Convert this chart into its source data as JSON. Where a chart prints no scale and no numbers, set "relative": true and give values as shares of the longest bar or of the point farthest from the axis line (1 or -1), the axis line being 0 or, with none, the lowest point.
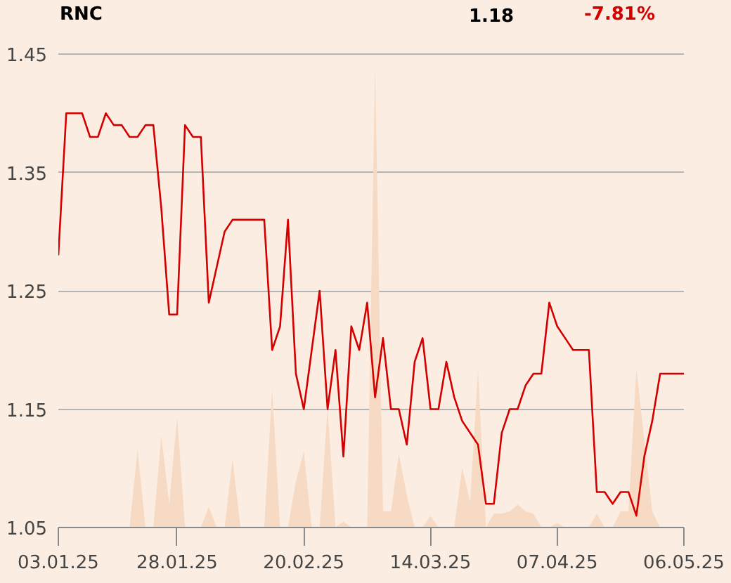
{
  "chart_data": [
    {
      "type": "line",
      "title": "RNC",
      "annotations": [
        "1.18",
        "-7.81%"
      ],
      "categories": [
        "03.01.25",
        null,
        null,
        null,
        null,
        null,
        null,
        null,
        null,
        null,
        null,
        null,
        null,
        null,
        null,
        "28.01.25",
        null,
        null,
        null,
        null,
        null,
        null,
        null,
        null,
        null,
        null,
        null,
        null,
        null,
        null,
        null,
        "20.02.25",
        null,
        null,
        null,
        null,
        null,
        null,
        null,
        null,
        null,
        null,
        null,
        null,
        null,
        null,
        null,
        "14.03.25",
        null,
        null,
        null,
        null,
        null,
        null,
        null,
        null,
        null,
        null,
        null,
        null,
        null,
        null,
        null,
        "07.04.25",
        null,
        null,
        null,
        null,
        null,
        null,
        null,
        null,
        null,
        null,
        null,
        null,
        null,
        null,
        null,
        "06.05.25"
      ],
      "color": "#d40000",
      "values": [
        1.28,
        1.4,
        1.4,
        1.4,
        1.38,
        1.38,
        1.4,
        1.39,
        1.39,
        1.38,
        1.38,
        1.39,
        1.39,
        1.32,
        1.23,
        1.23,
        1.39,
        1.38,
        1.38,
        1.24,
        1.27,
        1.3,
        1.31,
        1.31,
        1.31,
        1.31,
        1.31,
        1.2,
        1.22,
        1.31,
        1.18,
        1.15,
        1.2,
        1.25,
        1.15,
        1.2,
        1.11,
        1.22,
        1.2,
        1.24,
        1.16,
        1.21,
        1.15,
        1.15,
        1.12,
        1.19,
        1.21,
        1.15,
        1.15,
        1.19,
        1.16,
        1.14,
        1.13,
        1.12,
        1.07,
        1.07,
        1.13,
        1.15,
        1.15,
        1.17,
        1.18,
        1.18,
        1.24,
        1.22,
        1.21,
        1.2,
        1.2,
        1.2,
        1.08,
        1.08,
        1.07,
        1.08,
        1.08,
        1.06,
        1.11,
        1.14,
        1.18,
        1.18,
        1.18,
        1.18
      ],
      "ylim": [
        1.05,
        1.45
      ],
      "yticks": [
        1.05,
        1.15,
        1.25,
        1.35,
        1.45
      ],
      "grid": "y"
    },
    {
      "type": "area",
      "relative": true,
      "tick_labels": false,
      "categories": [
        "03.01.25",
        null,
        null,
        null,
        null,
        null,
        null,
        null,
        null,
        null,
        null,
        null,
        null,
        null,
        null,
        "28.01.25",
        null,
        null,
        null,
        null,
        null,
        null,
        null,
        null,
        null,
        null,
        null,
        null,
        null,
        null,
        null,
        "20.02.25",
        null,
        null,
        null,
        null,
        null,
        null,
        null,
        null,
        null,
        null,
        null,
        null,
        null,
        null,
        null,
        "14.03.25",
        null,
        null,
        null,
        null,
        null,
        null,
        null,
        null,
        null,
        null,
        null,
        null,
        null,
        null,
        null,
        "07.04.25",
        null,
        null,
        null,
        null,
        null,
        null,
        null,
        null,
        null,
        null,
        null,
        null,
        null,
        null,
        null,
        "06.05.25"
      ],
      "color": "#f6dac4",
      "values": [
        0,
        0,
        0,
        0,
        0,
        0,
        0,
        0,
        0,
        0,
        0.17,
        0,
        0,
        0.2,
        0.05,
        0.24,
        0,
        0,
        0,
        0.045,
        0,
        0,
        0.15,
        0,
        0,
        0,
        0,
        0.3,
        0,
        0,
        0.1,
        0.165,
        0,
        0,
        0.26,
        0,
        0.013,
        0,
        0,
        0,
        1,
        0.035,
        0.035,
        0.16,
        0.07,
        0,
        0,
        0.025,
        0,
        0,
        0,
        0.13,
        0.055,
        0.34,
        0,
        0.03,
        0.03,
        0.035,
        0.05,
        0.035,
        0.03,
        0,
        0,
        0.01,
        0,
        0,
        0,
        0,
        0.03,
        0,
        0,
        0.035,
        0.035,
        0.345,
        0.19,
        0.035,
        0,
        0,
        0,
        0
      ]
    }
  ]
}
